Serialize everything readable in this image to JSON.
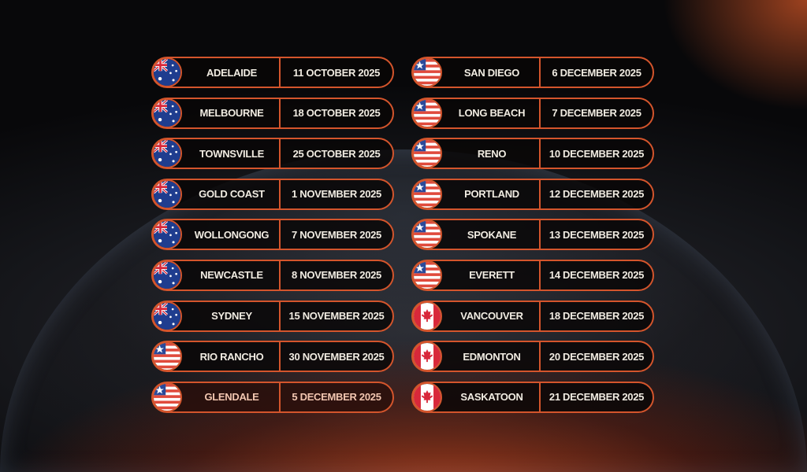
{
  "colors": {
    "border": "#d4552c",
    "text": "#f1ece2"
  },
  "left": [
    {
      "city": "ADELAIDE",
      "date": "11 OCTOBER 2025",
      "flag": "australia-flag"
    },
    {
      "city": "MELBOURNE",
      "date": "18 OCTOBER 2025",
      "flag": "australia-flag"
    },
    {
      "city": "TOWNSVILLE",
      "date": "25 OCTOBER 2025",
      "flag": "australia-flag"
    },
    {
      "city": "GOLD COAST",
      "date": "1 NOVEMBER 2025",
      "flag": "australia-flag"
    },
    {
      "city": "WOLLONGONG",
      "date": "7 NOVEMBER 2025",
      "flag": "australia-flag"
    },
    {
      "city": "NEWCASTLE",
      "date": "8 NOVEMBER 2025",
      "flag": "australia-flag"
    },
    {
      "city": "SYDNEY",
      "date": "15 NOVEMBER 2025",
      "flag": "australia-flag"
    },
    {
      "city": "RIO RANCHO",
      "date": "30 NOVEMBER 2025",
      "flag": "usa-flag"
    },
    {
      "city": "GLENDALE",
      "date": "5 DECEMBER 2025",
      "flag": "usa-flag"
    }
  ],
  "right": [
    {
      "city": "SAN DIEGO",
      "date": "6 DECEMBER 2025",
      "flag": "usa-flag"
    },
    {
      "city": "LONG BEACH",
      "date": "7 DECEMBER 2025",
      "flag": "usa-flag"
    },
    {
      "city": "RENO",
      "date": "10 DECEMBER 2025",
      "flag": "usa-flag"
    },
    {
      "city": "PORTLAND",
      "date": "12 DECEMBER 2025",
      "flag": "usa-flag"
    },
    {
      "city": "SPOKANE",
      "date": "13 DECEMBER 2025",
      "flag": "usa-flag"
    },
    {
      "city": "EVERETT",
      "date": "14 DECEMBER 2025",
      "flag": "usa-flag"
    },
    {
      "city": "VANCOUVER",
      "date": "18 DECEMBER 2025",
      "flag": "canada-flag"
    },
    {
      "city": "EDMONTON",
      "date": "20 DECEMBER 2025",
      "flag": "canada-flag"
    },
    {
      "city": "SASKATOON",
      "date": "21 DECEMBER 2025",
      "flag": "canada-flag"
    }
  ]
}
